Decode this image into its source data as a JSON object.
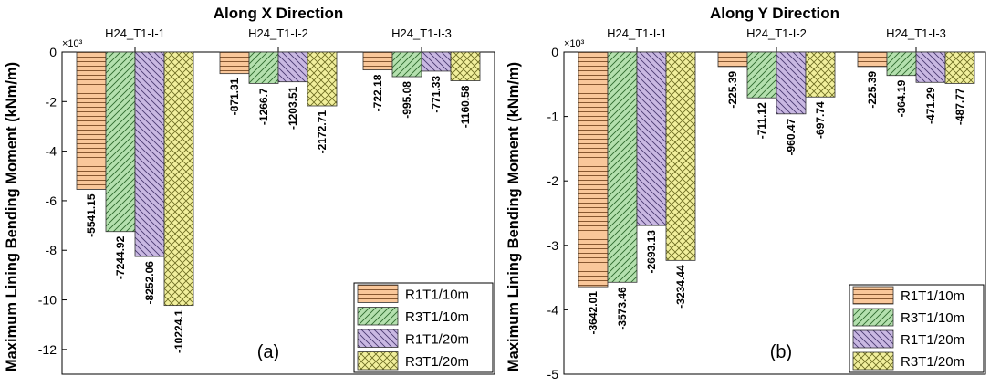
{
  "chart_data": [
    {
      "type": "bar",
      "panel_label": "(a)",
      "title": "Along X Direction",
      "ylabel": "Maximum Lining Bending Moment (kNm/m)",
      "xlabel": "",
      "y_multiplier": "×10³",
      "ylim": [
        -13,
        0
      ],
      "yticks": [
        0,
        -2,
        -4,
        -6,
        -8,
        -10,
        -12
      ],
      "ytick_labels": [
        "0",
        "-2",
        "-4",
        "-6",
        "-8",
        "-10",
        "-12"
      ],
      "categories": [
        "H24_T1-I-1",
        "H24_T1-I-2",
        "H24_T1-I-3"
      ],
      "series": [
        {
          "name": "R1T1/10m",
          "values": [
            -5541.15,
            -871.31,
            -722.18
          ],
          "labels": [
            "-5541.15",
            "-871.31",
            "-722.18"
          ]
        },
        {
          "name": "R3T1/10m",
          "values": [
            -7244.92,
            -1266.7,
            -995.08
          ],
          "labels": [
            "-7244.92",
            "-1266.7",
            "-995.08"
          ]
        },
        {
          "name": "R1T1/20m",
          "values": [
            -8252.06,
            -1203.51,
            -771.33
          ],
          "labels": [
            "-8252.06",
            "-1203.51",
            "-771.33"
          ]
        },
        {
          "name": "R3T1/20m",
          "values": [
            -10224.1,
            -2172.71,
            -1160.58
          ],
          "labels": [
            "-10224.1",
            "-2172.71",
            "-1160.58"
          ]
        }
      ],
      "legend": "bottom-right",
      "grid": false
    },
    {
      "type": "bar",
      "panel_label": "(b)",
      "title": "Along Y Direction",
      "ylabel": "Maximum Lining Bending Moment (kNm/m)",
      "xlabel": "",
      "y_multiplier": "×10³",
      "ylim": [
        -5,
        0
      ],
      "yticks": [
        0,
        -1,
        -2,
        -3,
        -4,
        -5
      ],
      "ytick_labels": [
        "0",
        "-1",
        "-2",
        "-3",
        "-4",
        "-5"
      ],
      "categories": [
        "H24_T1-I-1",
        "H24_T1-I-2",
        "H24_T1-I-3"
      ],
      "series": [
        {
          "name": "R1T1/10m",
          "values": [
            -3642.01,
            -225.39,
            -225.39
          ],
          "labels": [
            "-3642.01",
            "-225.39",
            "-225.39"
          ]
        },
        {
          "name": "R3T1/10m",
          "values": [
            -3573.46,
            -711.12,
            -364.19
          ],
          "labels": [
            "-3573.46",
            "-711.12",
            "-364.19"
          ]
        },
        {
          "name": "R1T1/20m",
          "values": [
            -2693.13,
            -960.47,
            -471.29
          ],
          "labels": [
            "-2693.13",
            "-960.47",
            "-471.29"
          ]
        },
        {
          "name": "R3T1/20m",
          "values": [
            -3234.44,
            -697.74,
            -487.77
          ],
          "labels": [
            "-3234.44",
            "-697.74",
            "-487.77"
          ]
        }
      ],
      "legend": "bottom-right",
      "grid": false
    }
  ],
  "colors": {
    "R1T1/10m": "#F9C79A",
    "R3T1/10m": "#B4E0AE",
    "R1T1/20m": "#C9B8E2",
    "R3T1/20m": "#F1EF9C"
  }
}
